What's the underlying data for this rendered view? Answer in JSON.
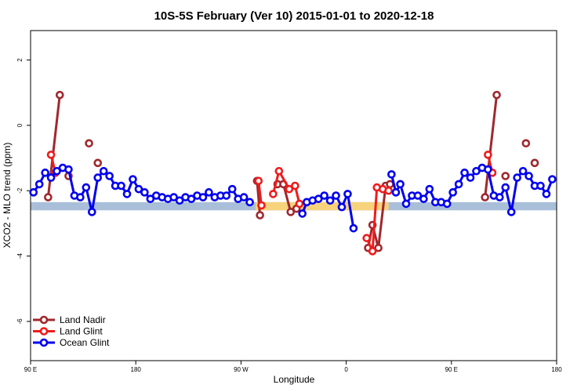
{
  "chart_data": {
    "type": "line",
    "title": "10S-5S February (Ver 10)   2015-01-01 to 2020-12-18",
    "xlabel": "Longitude",
    "ylabel": "XCO2 - MLO trend (ppm)",
    "xlim": [
      0,
      18
    ],
    "ylim": [
      -7.2,
      2.9
    ],
    "x_ticks": [
      {
        "x": 0,
        "label": "90 E"
      },
      {
        "x": 3.6,
        "label": "180"
      },
      {
        "x": 7.2,
        "label": "90 W"
      },
      {
        "x": 10.8,
        "label": "0"
      },
      {
        "x": 14.4,
        "label": "90 E"
      },
      {
        "x": 18,
        "label": "180"
      }
    ],
    "y_ticks": [
      {
        "y": 2,
        "label": "2"
      },
      {
        "y": 0,
        "label": "0"
      },
      {
        "y": -2,
        "label": "-2"
      },
      {
        "y": -4,
        "label": "-4"
      },
      {
        "y": -6,
        "label": "-6"
      }
    ],
    "grid": false,
    "legend_position": "bottom-left",
    "band": {
      "y_range": [
        -2.6,
        -2.35
      ],
      "ocean_color": "#a9bfd9",
      "land_color": "#f7d37c",
      "land_segments": [
        [
          7.7,
          9.6
        ],
        [
          9.6,
          12.25
        ]
      ]
    },
    "series": [
      {
        "name": "Land Nadir",
        "color": "#a0282d",
        "segments": [
          [
            [
              0.6,
              -2.2
            ],
            [
              1.0,
              0.93
            ]
          ],
          [
            [
              1.3,
              -1.55
            ]
          ],
          [
            [
              2.0,
              -0.55
            ]
          ],
          [
            [
              2.3,
              -1.15
            ]
          ],
          [
            [
              7.75,
              -1.7
            ],
            [
              7.85,
              -2.75
            ]
          ],
          [
            [
              8.45,
              -1.8
            ],
            [
              8.65,
              -1.8
            ],
            [
              8.9,
              -2.65
            ],
            [
              9.1,
              -2.55
            ]
          ],
          [
            [
              11.55,
              -3.75
            ],
            [
              11.7,
              -3.05
            ],
            [
              11.9,
              -3.75
            ],
            [
              12.15,
              -1.85
            ],
            [
              12.3,
              -1.8
            ]
          ],
          [
            [
              15.55,
              -2.2
            ],
            [
              15.95,
              0.93
            ]
          ],
          [
            [
              16.25,
              -1.55
            ]
          ],
          [
            [
              16.95,
              -0.55
            ]
          ],
          [
            [
              17.25,
              -1.15
            ]
          ]
        ]
      },
      {
        "name": "Land Glint",
        "color": "#ee1c1c",
        "segments": [
          [
            [
              0.7,
              -0.9
            ],
            [
              0.85,
              -1.45
            ]
          ],
          [
            [
              7.8,
              -1.7
            ],
            [
              7.9,
              -2.45
            ]
          ],
          [
            [
              8.3,
              -2.1
            ],
            [
              8.5,
              -1.4
            ],
            [
              8.85,
              -1.95
            ],
            [
              9.05,
              -1.85
            ],
            [
              9.2,
              -2.4
            ]
          ],
          [
            [
              11.5,
              -3.45
            ],
            [
              11.7,
              -3.85
            ],
            [
              11.85,
              -1.9
            ],
            [
              12.05,
              -1.95
            ],
            [
              12.25,
              -2.0
            ]
          ],
          [
            [
              15.65,
              -0.9
            ],
            [
              15.8,
              -1.45
            ]
          ]
        ]
      },
      {
        "name": "Ocean Glint",
        "color": "#0000ee",
        "segments": [
          [
            [
              0.1,
              -2.05
            ],
            [
              0.3,
              -1.8
            ],
            [
              0.5,
              -1.45
            ],
            [
              0.7,
              -1.6
            ],
            [
              0.9,
              -1.4
            ],
            [
              1.1,
              -1.3
            ],
            [
              1.3,
              -1.35
            ],
            [
              1.5,
              -2.15
            ],
            [
              1.7,
              -2.2
            ],
            [
              1.9,
              -1.9
            ],
            [
              2.1,
              -2.65
            ],
            [
              2.3,
              -1.6
            ],
            [
              2.5,
              -1.4
            ],
            [
              2.7,
              -1.55
            ],
            [
              2.9,
              -1.85
            ],
            [
              3.1,
              -1.85
            ],
            [
              3.3,
              -2.1
            ],
            [
              3.5,
              -1.65
            ],
            [
              3.7,
              -1.95
            ],
            [
              3.9,
              -2.05
            ],
            [
              4.1,
              -2.25
            ],
            [
              4.3,
              -2.15
            ],
            [
              4.5,
              -2.2
            ],
            [
              4.7,
              -2.25
            ],
            [
              4.9,
              -2.2
            ],
            [
              5.1,
              -2.3
            ],
            [
              5.3,
              -2.2
            ],
            [
              5.5,
              -2.25
            ],
            [
              5.7,
              -2.15
            ],
            [
              5.9,
              -2.2
            ],
            [
              6.1,
              -2.05
            ],
            [
              6.3,
              -2.2
            ],
            [
              6.5,
              -2.15
            ],
            [
              6.7,
              -2.15
            ],
            [
              6.9,
              -1.95
            ],
            [
              7.1,
              -2.25
            ],
            [
              7.3,
              -2.2
            ],
            [
              7.5,
              -2.35
            ]
          ],
          [
            [
              9.3,
              -2.7
            ],
            [
              9.45,
              -2.35
            ],
            [
              9.65,
              -2.3
            ],
            [
              9.85,
              -2.25
            ],
            [
              10.05,
              -2.15
            ],
            [
              10.25,
              -2.3
            ],
            [
              10.45,
              -2.15
            ],
            [
              10.65,
              -2.5
            ],
            [
              10.85,
              -2.1
            ],
            [
              11.05,
              -3.15
            ]
          ],
          [
            [
              12.35,
              -1.5
            ],
            [
              12.5,
              -2.05
            ],
            [
              12.65,
              -1.8
            ],
            [
              12.85,
              -2.4
            ],
            [
              13.05,
              -2.15
            ],
            [
              13.25,
              -2.15
            ],
            [
              13.45,
              -2.25
            ],
            [
              13.65,
              -1.95
            ],
            [
              13.85,
              -2.35
            ],
            [
              14.05,
              -2.35
            ],
            [
              14.25,
              -2.4
            ],
            [
              14.45,
              -2.05
            ],
            [
              14.65,
              -1.8
            ],
            [
              14.85,
              -1.45
            ],
            [
              15.05,
              -1.6
            ],
            [
              15.25,
              -1.4
            ],
            [
              15.45,
              -1.3
            ],
            [
              15.65,
              -1.35
            ],
            [
              15.85,
              -2.15
            ],
            [
              16.05,
              -2.2
            ],
            [
              16.25,
              -1.9
            ],
            [
              16.45,
              -2.65
            ],
            [
              16.65,
              -1.6
            ],
            [
              16.85,
              -1.4
            ],
            [
              17.05,
              -1.55
            ],
            [
              17.25,
              -1.85
            ],
            [
              17.45,
              -1.85
            ],
            [
              17.65,
              -2.1
            ],
            [
              17.85,
              -1.65
            ]
          ]
        ]
      }
    ]
  }
}
